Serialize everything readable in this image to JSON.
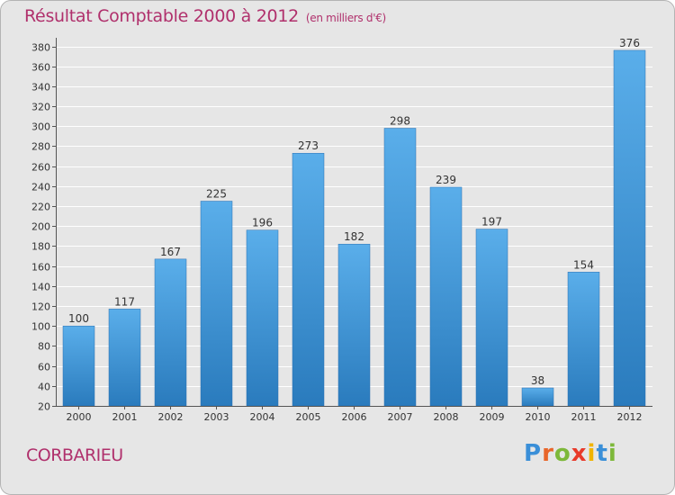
{
  "title": "Résultat Comptable 2000 à 2012",
  "subtitle": "(en milliers d'€)",
  "commune": "CORBARIEU",
  "logo": "Proxiti",
  "colors": {
    "title": "#b0306c",
    "bar_top": "#5aaeea",
    "bar_bottom": "#2a7bbd",
    "background": "#e6e6e6"
  },
  "chart_data": {
    "type": "bar",
    "title": "Résultat Comptable 2000 à 2012",
    "subtitle": "(en milliers d'€)",
    "xlabel": "",
    "ylabel": "",
    "categories": [
      "2000",
      "2001",
      "2002",
      "2003",
      "2004",
      "2005",
      "2006",
      "2007",
      "2008",
      "2009",
      "2010",
      "2011",
      "2012"
    ],
    "values": [
      100,
      117,
      167,
      225,
      196,
      273,
      182,
      298,
      239,
      197,
      38,
      154,
      376
    ],
    "ylim": [
      20,
      380
    ],
    "yticks": [
      20,
      40,
      60,
      80,
      100,
      120,
      140,
      160,
      180,
      200,
      220,
      240,
      260,
      280,
      300,
      320,
      340,
      360,
      380
    ],
    "grid": true,
    "legend": "none"
  }
}
